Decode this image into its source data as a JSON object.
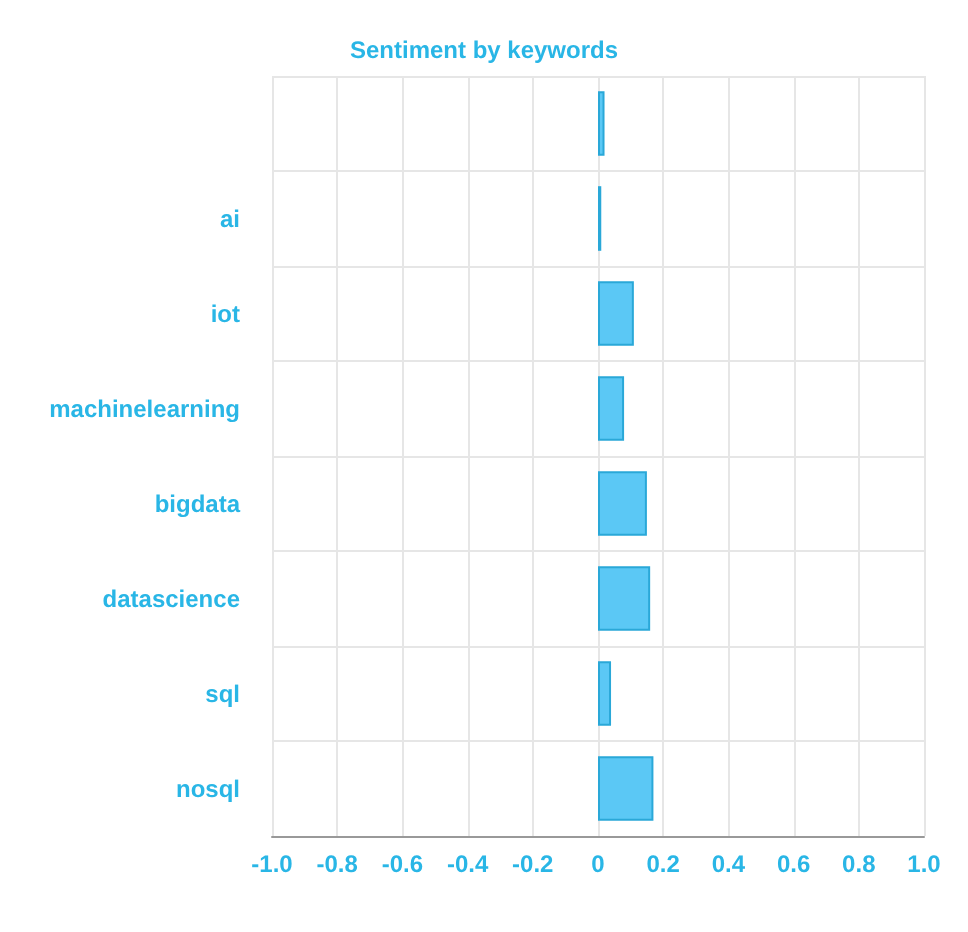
{
  "chart_data": {
    "type": "bar",
    "orientation": "horizontal",
    "title": "Sentiment by keywords",
    "categories": [
      null,
      "ai",
      "iot",
      "machinelearning",
      "bigdata",
      "datascience",
      "sql",
      "nosql"
    ],
    "values": [
      0.02,
      0.01,
      0.11,
      0.08,
      0.15,
      0.16,
      0.04,
      0.17
    ],
    "color": "#5bc8f5",
    "xlim": [
      -1,
      1
    ],
    "xticks": [
      {
        "value": -1,
        "label": "-1.0"
      },
      {
        "value": -0.8,
        "label": "-0.8"
      },
      {
        "value": -0.6,
        "label": "-0.6"
      },
      {
        "value": -0.4,
        "label": "-0.4"
      },
      {
        "value": -0.2,
        "label": "-0.2"
      },
      0,
      {
        "value": 0.2,
        "label": "0.2"
      },
      {
        "value": 0.4,
        "label": "0.4"
      },
      {
        "value": 0.6,
        "label": "0.6"
      },
      {
        "value": 0.8,
        "label": "0.8"
      },
      {
        "value": 1,
        "label": "1.0"
      }
    ],
    "grid": true
  }
}
